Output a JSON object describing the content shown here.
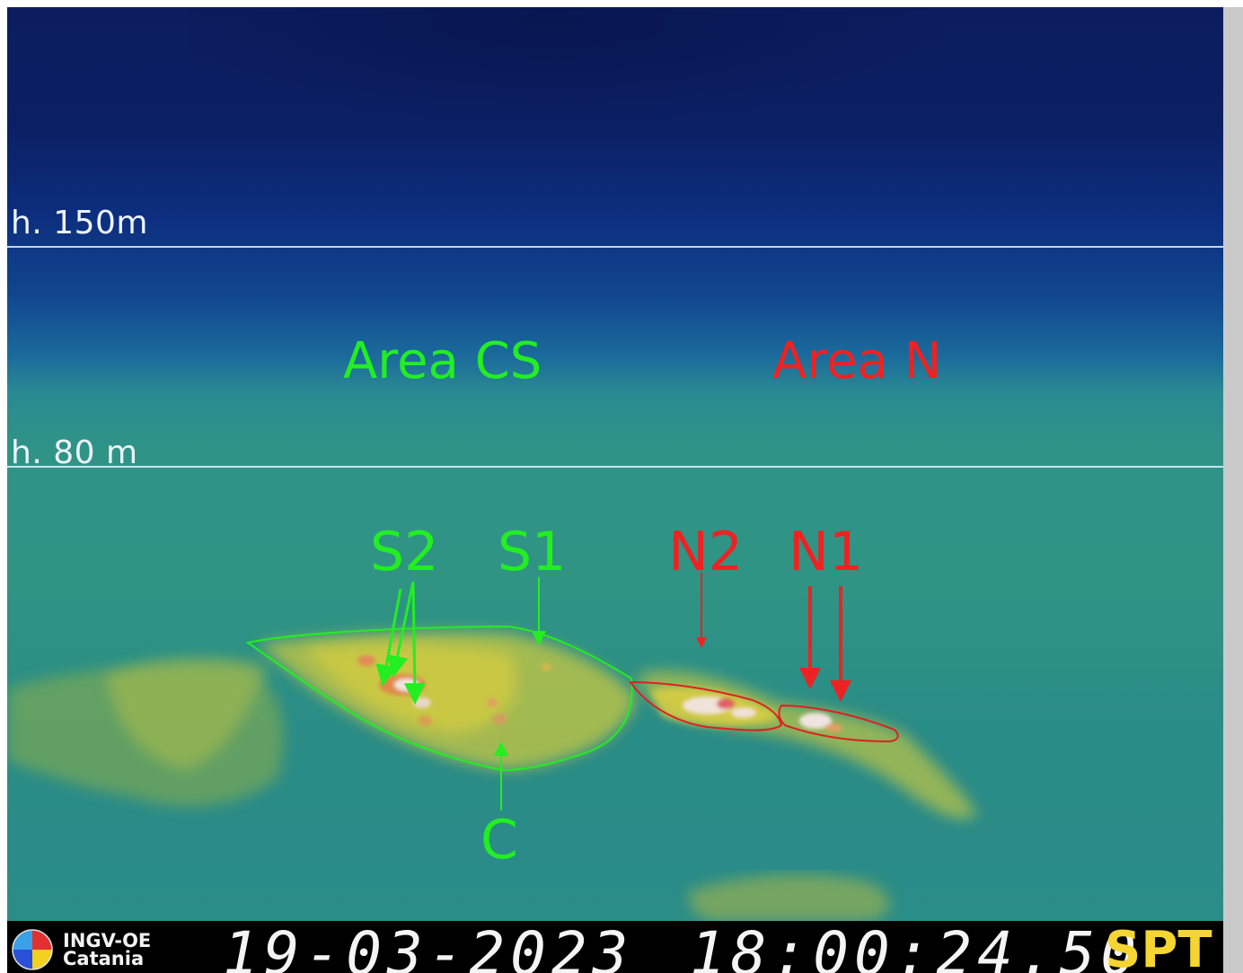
{
  "height_markers": [
    {
      "label": "h. 150m"
    },
    {
      "label": "h. 80 m"
    }
  ],
  "areas": {
    "cs": {
      "label": "Area CS",
      "color": "#22ee22"
    },
    "n": {
      "label": "Area N",
      "color": "#ee2222"
    }
  },
  "vents": {
    "s2": "S2",
    "s1": "S1",
    "c": "C",
    "n2": "N2",
    "n1": "N1"
  },
  "footer": {
    "logo_line1": "INGV-OE",
    "logo_line2": "Catania",
    "date": "19-03-2023",
    "time": "18:00:24.50",
    "station": "SPT",
    "station_color": "#f5d532"
  },
  "icons": [
    "ingv-logo-icon"
  ]
}
